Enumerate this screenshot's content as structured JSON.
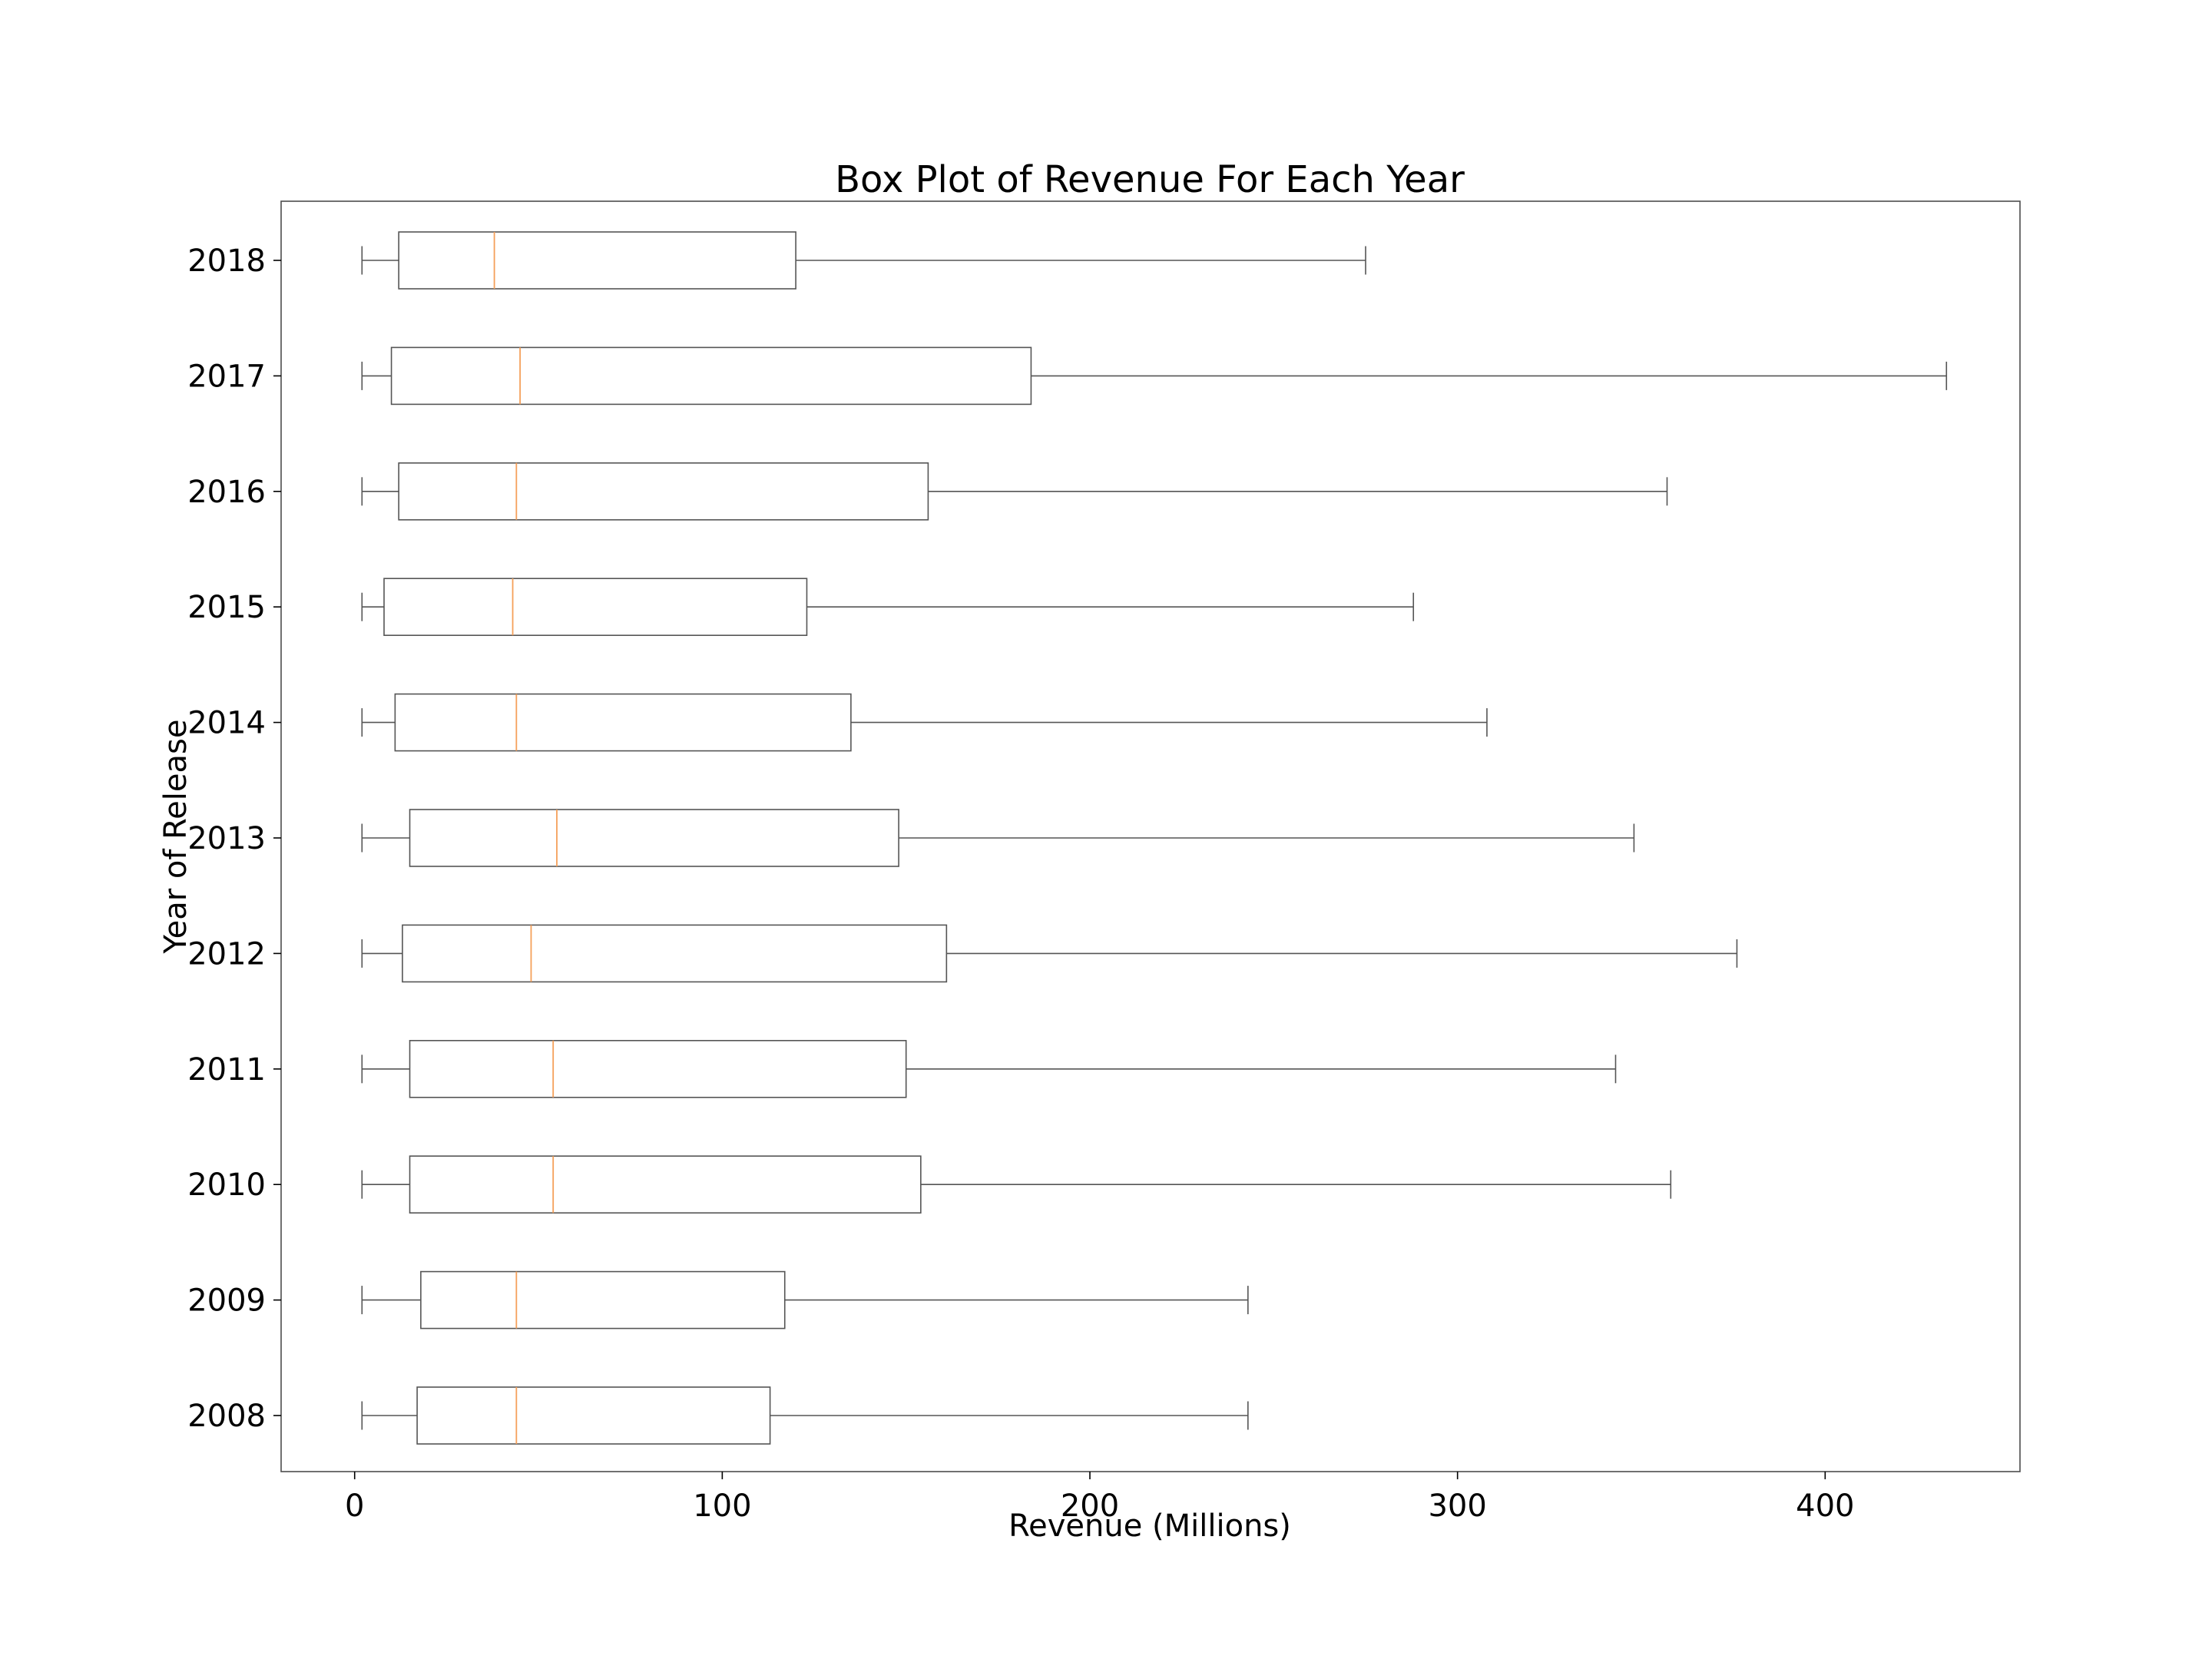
{
  "chart_data": {
    "type": "box",
    "orientation": "horizontal",
    "title": "Box Plot of Revenue For Each Year",
    "xlabel": "Revenue (Millions)",
    "ylabel": "Year of Release",
    "xlim": [
      -20,
      453
    ],
    "xticks": [
      0,
      100,
      200,
      300,
      400
    ],
    "grid": false,
    "colors": {
      "box": "#555555",
      "median": "#f5a05a",
      "text": "#000000"
    },
    "categories": [
      "2008",
      "2009",
      "2010",
      "2011",
      "2012",
      "2013",
      "2014",
      "2015",
      "2016",
      "2017",
      "2018"
    ],
    "boxes": [
      {
        "year": "2008",
        "whisker_low": 2,
        "q1": 17,
        "median": 44,
        "q3": 113,
        "whisker_high": 243
      },
      {
        "year": "2009",
        "whisker_low": 2,
        "q1": 18,
        "median": 44,
        "q3": 117,
        "whisker_high": 243
      },
      {
        "year": "2010",
        "whisker_low": 2,
        "q1": 15,
        "median": 54,
        "q3": 154,
        "whisker_high": 358
      },
      {
        "year": "2011",
        "whisker_low": 2,
        "q1": 15,
        "median": 54,
        "q3": 150,
        "whisker_high": 343
      },
      {
        "year": "2012",
        "whisker_low": 2,
        "q1": 13,
        "median": 48,
        "q3": 161,
        "whisker_high": 376
      },
      {
        "year": "2013",
        "whisker_low": 2,
        "q1": 15,
        "median": 55,
        "q3": 148,
        "whisker_high": 348
      },
      {
        "year": "2014",
        "whisker_low": 2,
        "q1": 11,
        "median": 44,
        "q3": 135,
        "whisker_high": 308
      },
      {
        "year": "2015",
        "whisker_low": 2,
        "q1": 8,
        "median": 43,
        "q3": 123,
        "whisker_high": 288
      },
      {
        "year": "2016",
        "whisker_low": 2,
        "q1": 12,
        "median": 44,
        "q3": 156,
        "whisker_high": 357
      },
      {
        "year": "2017",
        "whisker_low": 2,
        "q1": 10,
        "median": 45,
        "q3": 184,
        "whisker_high": 433
      },
      {
        "year": "2018",
        "whisker_low": 2,
        "q1": 12,
        "median": 38,
        "q3": 120,
        "whisker_high": 275
      }
    ]
  }
}
